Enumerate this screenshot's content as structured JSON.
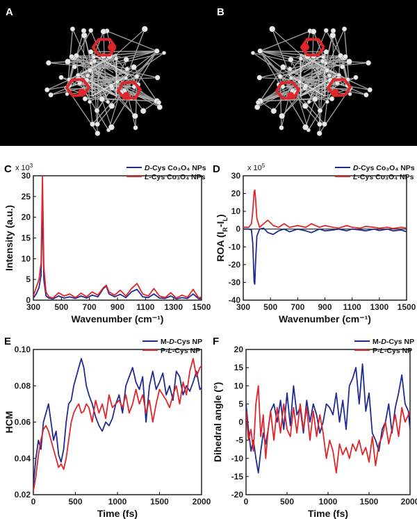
{
  "panels": {
    "A": {
      "letter": "A"
    },
    "B": {
      "letter": "B"
    }
  },
  "colors": {
    "d_series": "#1f2b8f",
    "l_series": "#e0262a",
    "bond_red": "#e0262a",
    "atom_white": "#e8e8e8",
    "black_bg": "#000000"
  },
  "chart_data": [
    {
      "id": "C",
      "letter": "C",
      "type": "line",
      "ylabel": "Intensity (a.u.)",
      "xlabel": "Wavenumber (cm⁻¹)",
      "scale_base": "x 10",
      "scale_exp": "3",
      "xlim": [
        300,
        1500
      ],
      "ylim": [
        0,
        30
      ],
      "xticks": [
        "300",
        "500",
        "700",
        "900",
        "1100",
        "1300",
        "1500"
      ],
      "yticks": [
        "0",
        "5",
        "10",
        "15",
        "20",
        "25",
        "30"
      ],
      "legend": [
        {
          "prefix": "D",
          "text": "-Cys Co₃O₄ NPs"
        },
        {
          "prefix": "L",
          "text": "-Cys Co₃O₄  NPs"
        }
      ],
      "series": [
        {
          "key": "D",
          "x": [
            300,
            320,
            340,
            355,
            365,
            375,
            390,
            410,
            440,
            480,
            520,
            560,
            600,
            640,
            680,
            720,
            760,
            800,
            820,
            840,
            880,
            920,
            960,
            1000,
            1040,
            1080,
            1120,
            1160,
            1200,
            1240,
            1280,
            1320,
            1360,
            1400,
            1440,
            1480,
            1500
          ],
          "y": [
            0.5,
            1.5,
            3,
            6,
            23,
            5,
            1,
            0.5,
            0.3,
            1,
            0.5,
            0.8,
            0.4,
            1,
            0.5,
            1.2,
            0.8,
            2.8,
            3.4,
            1.5,
            0.8,
            1.4,
            0.6,
            2,
            2.6,
            0.8,
            0.6,
            1.5,
            0.5,
            0.4,
            1,
            0.3,
            0.6,
            0.4,
            1.5,
            0.3,
            0.4
          ]
        },
        {
          "key": "L",
          "x": [
            300,
            320,
            340,
            355,
            365,
            375,
            390,
            410,
            440,
            480,
            520,
            560,
            600,
            640,
            680,
            720,
            760,
            800,
            820,
            840,
            880,
            920,
            960,
            1000,
            1040,
            1080,
            1120,
            1160,
            1200,
            1240,
            1280,
            1320,
            1360,
            1400,
            1440,
            1480,
            1500
          ],
          "y": [
            1,
            3,
            5,
            9,
            30,
            8,
            2,
            0.8,
            0.5,
            1.8,
            1,
            1.5,
            0.6,
            1.7,
            0.8,
            2,
            1.2,
            3,
            3.6,
            2,
            1.2,
            2.4,
            1,
            2.8,
            4,
            1.5,
            1,
            2.8,
            1,
            0.6,
            1.8,
            0.5,
            1.2,
            0.7,
            2.6,
            0.5,
            0.8
          ]
        }
      ]
    },
    {
      "id": "D",
      "letter": "D",
      "type": "line",
      "ylabel": "ROA (I",
      "ylabel_sub1": "R",
      "ylabel_mid": "-I",
      "ylabel_sub2": "L",
      "ylabel_end": ")",
      "xlabel": "Wavenumber (cm⁻¹)",
      "scale_base": "x 10",
      "scale_exp": "5",
      "xlim": [
        300,
        1500
      ],
      "ylim": [
        -40,
        30
      ],
      "xticks": [
        "300",
        "500",
        "700",
        "900",
        "1100",
        "1300",
        "1500"
      ],
      "yticks": [
        "-40",
        "-30",
        "-20",
        "-10",
        "0",
        "10",
        "20",
        "30"
      ],
      "legend": [
        {
          "prefix": "D",
          "text": "-Cys Co₃O₄ NPs"
        },
        {
          "prefix": "L",
          "text": "-Cys Co₃O₄  NPs"
        }
      ],
      "series": [
        {
          "key": "D",
          "x": [
            300,
            340,
            360,
            370,
            380,
            385,
            390,
            400,
            420,
            450,
            480,
            520,
            560,
            600,
            640,
            700,
            760,
            800,
            860,
            900,
            960,
            1000,
            1060,
            1100,
            1160,
            1200,
            1260,
            1300,
            1360,
            1400,
            1460,
            1500
          ],
          "y": [
            0,
            0,
            -0.5,
            -8,
            -30,
            -31,
            -20,
            -4,
            0,
            0.5,
            -2,
            -3,
            -1,
            0,
            -1.5,
            0,
            -1,
            -2,
            0,
            -1,
            -0.5,
            0,
            -1,
            0,
            -0.5,
            -1,
            0,
            -0.8,
            0,
            -1,
            -0.5,
            -1.5
          ]
        },
        {
          "key": "L",
          "x": [
            300,
            340,
            360,
            370,
            380,
            385,
            390,
            400,
            420,
            450,
            480,
            520,
            560,
            600,
            640,
            700,
            760,
            800,
            860,
            900,
            960,
            1000,
            1060,
            1100,
            1160,
            1200,
            1260,
            1300,
            1360,
            1400,
            1460,
            1500
          ],
          "y": [
            1,
            1,
            3,
            10,
            21,
            22,
            18,
            6,
            1,
            3,
            5,
            2,
            1,
            3,
            1,
            2,
            1,
            3,
            1,
            2,
            1,
            0.5,
            2,
            1,
            0.5,
            1.5,
            1,
            0.5,
            1,
            0.3,
            1,
            0.5
          ]
        }
      ]
    },
    {
      "id": "E",
      "letter": "E",
      "type": "line",
      "ylabel": "HCM",
      "xlabel": "Time (fs)",
      "xlim": [
        0,
        2000
      ],
      "ylim": [
        0.02,
        0.1
      ],
      "xticks": [
        "0",
        "500",
        "1000",
        "1500",
        "2000"
      ],
      "yticks": [
        "0.02",
        "0.04",
        "0.06",
        "0.08",
        "0.10"
      ],
      "legend": [
        {
          "pre": "M-",
          "prefix": "D",
          "text": "-Cys NP"
        },
        {
          "pre": "P-",
          "prefix": "L",
          "text": "-Cys NP"
        }
      ],
      "series": [
        {
          "key": "D",
          "x": [
            0,
            30,
            60,
            90,
            120,
            150,
            180,
            210,
            240,
            270,
            300,
            330,
            360,
            390,
            420,
            450,
            480,
            510,
            540,
            570,
            600,
            630,
            660,
            700,
            740,
            780,
            820,
            860,
            900,
            940,
            980,
            1020,
            1060,
            1100,
            1140,
            1180,
            1220,
            1260,
            1300,
            1340,
            1380,
            1420,
            1460,
            1500,
            1540,
            1580,
            1620,
            1660,
            1700,
            1740,
            1780,
            1820,
            1860,
            1900,
            1940,
            1980,
            2000
          ],
          "y": [
            0.025,
            0.04,
            0.05,
            0.045,
            0.06,
            0.065,
            0.07,
            0.06,
            0.05,
            0.055,
            0.042,
            0.038,
            0.045,
            0.06,
            0.07,
            0.072,
            0.08,
            0.085,
            0.09,
            0.095,
            0.09,
            0.08,
            0.075,
            0.07,
            0.063,
            0.058,
            0.055,
            0.06,
            0.058,
            0.062,
            0.07,
            0.075,
            0.065,
            0.08,
            0.085,
            0.09,
            0.082,
            0.078,
            0.085,
            0.06,
            0.08,
            0.088,
            0.078,
            0.082,
            0.087,
            0.075,
            0.08,
            0.072,
            0.088,
            0.085,
            0.075,
            0.08,
            0.077,
            0.082,
            0.088,
            0.078,
            0.079
          ]
        },
        {
          "key": "L",
          "x": [
            0,
            30,
            60,
            90,
            120,
            150,
            180,
            210,
            240,
            270,
            300,
            330,
            360,
            390,
            420,
            450,
            480,
            510,
            540,
            570,
            600,
            630,
            660,
            700,
            740,
            780,
            820,
            860,
            900,
            940,
            980,
            1020,
            1060,
            1100,
            1140,
            1180,
            1220,
            1260,
            1300,
            1340,
            1380,
            1420,
            1460,
            1500,
            1540,
            1580,
            1620,
            1660,
            1700,
            1740,
            1780,
            1820,
            1860,
            1900,
            1940,
            1980,
            2000
          ],
          "y": [
            0.022,
            0.03,
            0.042,
            0.05,
            0.056,
            0.058,
            0.055,
            0.05,
            0.045,
            0.04,
            0.035,
            0.037,
            0.034,
            0.04,
            0.05,
            0.06,
            0.065,
            0.068,
            0.07,
            0.065,
            0.066,
            0.07,
            0.068,
            0.06,
            0.072,
            0.065,
            0.07,
            0.062,
            0.075,
            0.068,
            0.07,
            0.072,
            0.068,
            0.075,
            0.065,
            0.07,
            0.078,
            0.07,
            0.075,
            0.065,
            0.072,
            0.06,
            0.07,
            0.078,
            0.075,
            0.072,
            0.068,
            0.075,
            0.08,
            0.07,
            0.082,
            0.075,
            0.088,
            0.095,
            0.085,
            0.09,
            0.091
          ]
        }
      ]
    },
    {
      "id": "F",
      "letter": "F",
      "type": "line",
      "ylabel": "Dihedral angle (°)",
      "xlabel": "Time (fs)",
      "xlim": [
        0,
        2000
      ],
      "ylim": [
        -20,
        20
      ],
      "xticks": [
        "0",
        "500",
        "1000",
        "1500",
        "2000"
      ],
      "yticks": [
        "-20",
        "-15",
        "-10",
        "-5",
        "0",
        "5",
        "10",
        "15",
        "20"
      ],
      "legend": [
        {
          "pre": "M-",
          "prefix": "D",
          "text": "-Cys NP"
        },
        {
          "pre": "P-",
          "prefix": "L",
          "text": "-Cys NP"
        }
      ],
      "series": [
        {
          "key": "D",
          "x": [
            0,
            30,
            60,
            90,
            120,
            150,
            180,
            210,
            240,
            270,
            300,
            340,
            380,
            420,
            460,
            500,
            540,
            580,
            620,
            660,
            700,
            740,
            780,
            820,
            860,
            900,
            940,
            980,
            1020,
            1060,
            1100,
            1140,
            1180,
            1220,
            1260,
            1300,
            1340,
            1380,
            1420,
            1460,
            1500,
            1540,
            1580,
            1620,
            1660,
            1700,
            1740,
            1780,
            1820,
            1860,
            1900,
            1940,
            1980,
            2000
          ],
          "y": [
            5,
            -2,
            -8,
            -5,
            -10,
            -14,
            -8,
            -3,
            -6,
            -2,
            3,
            5,
            0,
            6,
            -2,
            8,
            -1,
            10,
            2,
            4,
            -3,
            6,
            0,
            5,
            2,
            -3,
            0,
            5,
            4,
            2,
            8,
            0,
            6,
            -2,
            10,
            12,
            15,
            5,
            16,
            3,
            8,
            -3,
            -5,
            -8,
            -2,
            0,
            5,
            -3,
            4,
            8,
            13,
            5,
            3,
            -2
          ]
        },
        {
          "key": "L",
          "x": [
            0,
            30,
            60,
            90,
            120,
            150,
            180,
            210,
            240,
            270,
            300,
            340,
            380,
            420,
            460,
            500,
            540,
            580,
            620,
            660,
            700,
            740,
            780,
            820,
            860,
            900,
            940,
            980,
            1020,
            1060,
            1100,
            1140,
            1180,
            1220,
            1260,
            1300,
            1340,
            1380,
            1420,
            1460,
            1500,
            1540,
            1580,
            1620,
            1660,
            1700,
            1740,
            1780,
            1820,
            1860,
            1900,
            1940,
            1980,
            2000
          ],
          "y": [
            3,
            -5,
            -2,
            -8,
            5,
            10,
            -4,
            2,
            -10,
            -2,
            3,
            -5,
            4,
            -3,
            5,
            -2,
            -4,
            4,
            -3,
            5,
            -2,
            4,
            -5,
            3,
            -4,
            2,
            -3,
            -10,
            -5,
            -8,
            -14,
            -6,
            -9,
            -7,
            -10,
            -6,
            -8,
            -5,
            -9,
            -7,
            -11,
            -4,
            -12,
            -6,
            -4,
            0,
            -6,
            -2,
            2,
            -4,
            4,
            0,
            2,
            3
          ]
        }
      ]
    }
  ]
}
